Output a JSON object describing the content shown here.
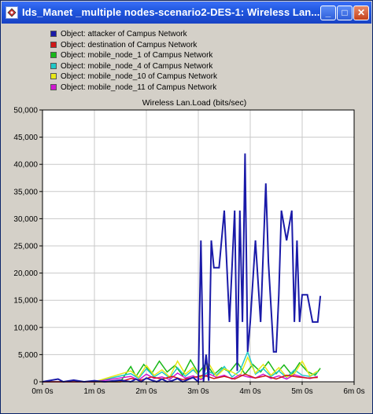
{
  "window": {
    "title": "Ids_Manet _multiple nodes-scenario2-DES-1: Wireless Lan....",
    "buttons": {
      "minimize": "_",
      "maximize": "□",
      "close": "✕"
    },
    "icon": "app-icon"
  },
  "legend": [
    {
      "label": "Object: attacker of Campus Network",
      "color": "#1a1aa8"
    },
    {
      "label": "Object: destination of Campus Network",
      "color": "#d01818"
    },
    {
      "label": "Object: mobile_node_1 of Campus Network",
      "color": "#18b818"
    },
    {
      "label": "Object: mobile_node_4 of Campus Network",
      "color": "#20c8c8"
    },
    {
      "label": "Object: mobile_node_10 of Campus Network",
      "color": "#e8e818"
    },
    {
      "label": "Object: mobile_node_11 of Campus Network",
      "color": "#d018d0"
    }
  ],
  "chart_data": {
    "type": "line",
    "title": "Wireless Lan.Load (bits/sec)",
    "ylim": [
      0,
      50000
    ],
    "yticks": [
      "0",
      "5,000",
      "10,000",
      "15,000",
      "20,000",
      "25,000",
      "30,000",
      "35,000",
      "40,000",
      "45,000",
      "50,000"
    ],
    "xlim": [
      0,
      6
    ],
    "xticks": [
      "0m 0s",
      "1m 0s",
      "2m 0s",
      "3m 0s",
      "4m 0s",
      "5m 0s",
      "6m 0s"
    ],
    "x_unit": "minutes",
    "series": [
      {
        "name": "Object: attacker of Campus Network",
        "color": "#1a1aa8",
        "x": [
          0,
          0.3,
          0.4,
          0.6,
          0.8,
          1.0,
          1.2,
          1.5,
          1.7,
          1.8,
          1.9,
          2.0,
          2.1,
          2.2,
          2.3,
          2.4,
          2.5,
          2.6,
          2.7,
          2.8,
          2.9,
          3.0,
          3.05,
          3.1,
          3.15,
          3.2,
          3.25,
          3.3,
          3.4,
          3.5,
          3.6,
          3.7,
          3.75,
          3.8,
          3.85,
          3.9,
          3.95,
          4.0,
          4.1,
          4.2,
          4.3,
          4.35,
          4.45,
          4.5,
          4.55,
          4.6,
          4.7,
          4.8,
          4.85,
          4.9,
          4.95,
          5.0,
          5.05,
          5.1,
          5.2,
          5.3,
          5.35
        ],
        "y": [
          0,
          500,
          0,
          300,
          0,
          200,
          0,
          300,
          0,
          500,
          0,
          700,
          300,
          0,
          500,
          0,
          200,
          600,
          0,
          400,
          800,
          0,
          26000,
          0,
          5000,
          200,
          26000,
          21000,
          21000,
          31500,
          11000,
          31500,
          2000,
          31500,
          11000,
          42000,
          5500,
          11000,
          26000,
          11000,
          36500,
          22000,
          5500,
          5500,
          16000,
          31500,
          26000,
          31500,
          11000,
          26000,
          11000,
          16000,
          16000,
          16000,
          11000,
          11000,
          15800
        ]
      },
      {
        "name": "Object: destination of Campus Network",
        "color": "#d01818",
        "x": [
          0,
          0.5,
          1.0,
          1.5,
          1.7,
          1.9,
          2.1,
          2.3,
          2.5,
          2.7,
          2.9,
          3.1,
          3.3,
          3.5,
          3.7,
          3.9,
          4.1,
          4.3,
          4.5,
          4.7,
          4.9,
          5.1,
          5.3
        ],
        "y": [
          0,
          0,
          0,
          0,
          600,
          300,
          900,
          500,
          1000,
          400,
          800,
          1200,
          600,
          1000,
          500,
          1400,
          700,
          1100,
          500,
          1200,
          900,
          700,
          800
        ]
      },
      {
        "name": "Object: mobile_node_1 of Campus Network",
        "color": "#18b818",
        "x": [
          0,
          0.5,
          1.0,
          1.5,
          1.7,
          1.8,
          1.95,
          2.1,
          2.25,
          2.4,
          2.55,
          2.7,
          2.85,
          3.0,
          3.15,
          3.3,
          3.45,
          3.6,
          3.75,
          3.9,
          4.05,
          4.2,
          4.35,
          4.5,
          4.65,
          4.8,
          4.95,
          5.1,
          5.25,
          5.35
        ],
        "y": [
          0,
          0,
          0,
          0,
          2800,
          1000,
          3200,
          1500,
          3800,
          1800,
          3000,
          1200,
          4000,
          1600,
          3400,
          1300,
          2600,
          1800,
          3600,
          1400,
          3200,
          1800,
          3700,
          1500,
          3100,
          1300,
          3500,
          1900,
          1200,
          2500
        ]
      },
      {
        "name": "Object: mobile_node_4 of Campus Network",
        "color": "#20c8c8",
        "x": [
          0,
          1.0,
          1.7,
          1.85,
          2.0,
          2.15,
          2.3,
          2.45,
          2.6,
          2.75,
          2.9,
          3.05,
          3.2,
          3.35,
          3.5,
          3.65,
          3.8,
          3.95,
          4.1,
          4.25,
          4.4,
          4.55,
          4.7,
          4.85,
          5.0,
          5.15,
          5.3
        ],
        "y": [
          0,
          0,
          1500,
          600,
          2400,
          900,
          1800,
          700,
          2600,
          1000,
          2200,
          800,
          1900,
          1200,
          2800,
          900,
          2000,
          5500,
          1400,
          2400,
          1000,
          2000,
          800,
          2200,
          1200,
          1000,
          1800
        ]
      },
      {
        "name": "Object: mobile_node_10 of Campus Network",
        "color": "#e8e818",
        "x": [
          0,
          1.0,
          1.7,
          1.85,
          2.0,
          2.15,
          2.3,
          2.45,
          2.6,
          2.75,
          2.9,
          3.05,
          3.2,
          3.35,
          3.5,
          3.65,
          3.8,
          3.95,
          4.1,
          4.25,
          4.4,
          4.55,
          4.7,
          4.85,
          5.0,
          5.15,
          5.3
        ],
        "y": [
          0,
          0,
          2000,
          800,
          3000,
          1200,
          2200,
          900,
          3800,
          1400,
          2600,
          600,
          3400,
          1000,
          2400,
          1800,
          1000,
          4500,
          1600,
          3200,
          1200,
          2600,
          900,
          1500,
          3800,
          1100,
          2000
        ]
      },
      {
        "name": "Object: mobile_node_11 of Campus Network",
        "color": "#d018d0",
        "x": [
          0,
          1.0,
          1.7,
          1.85,
          2.0,
          2.15,
          2.3,
          2.45,
          2.6,
          2.75,
          2.9,
          3.05,
          3.2,
          3.35,
          3.5,
          3.65,
          3.8,
          3.95,
          4.1,
          4.25,
          4.4,
          4.55,
          4.7,
          4.85,
          5.0,
          5.15,
          5.3
        ],
        "y": [
          0,
          0,
          1000,
          300,
          1400,
          600,
          900,
          400,
          1600,
          700,
          1100,
          400,
          1500,
          800,
          1200,
          500,
          1300,
          900,
          700,
          1400,
          600,
          1100,
          500,
          1300,
          900,
          600,
          1000
        ]
      }
    ]
  }
}
